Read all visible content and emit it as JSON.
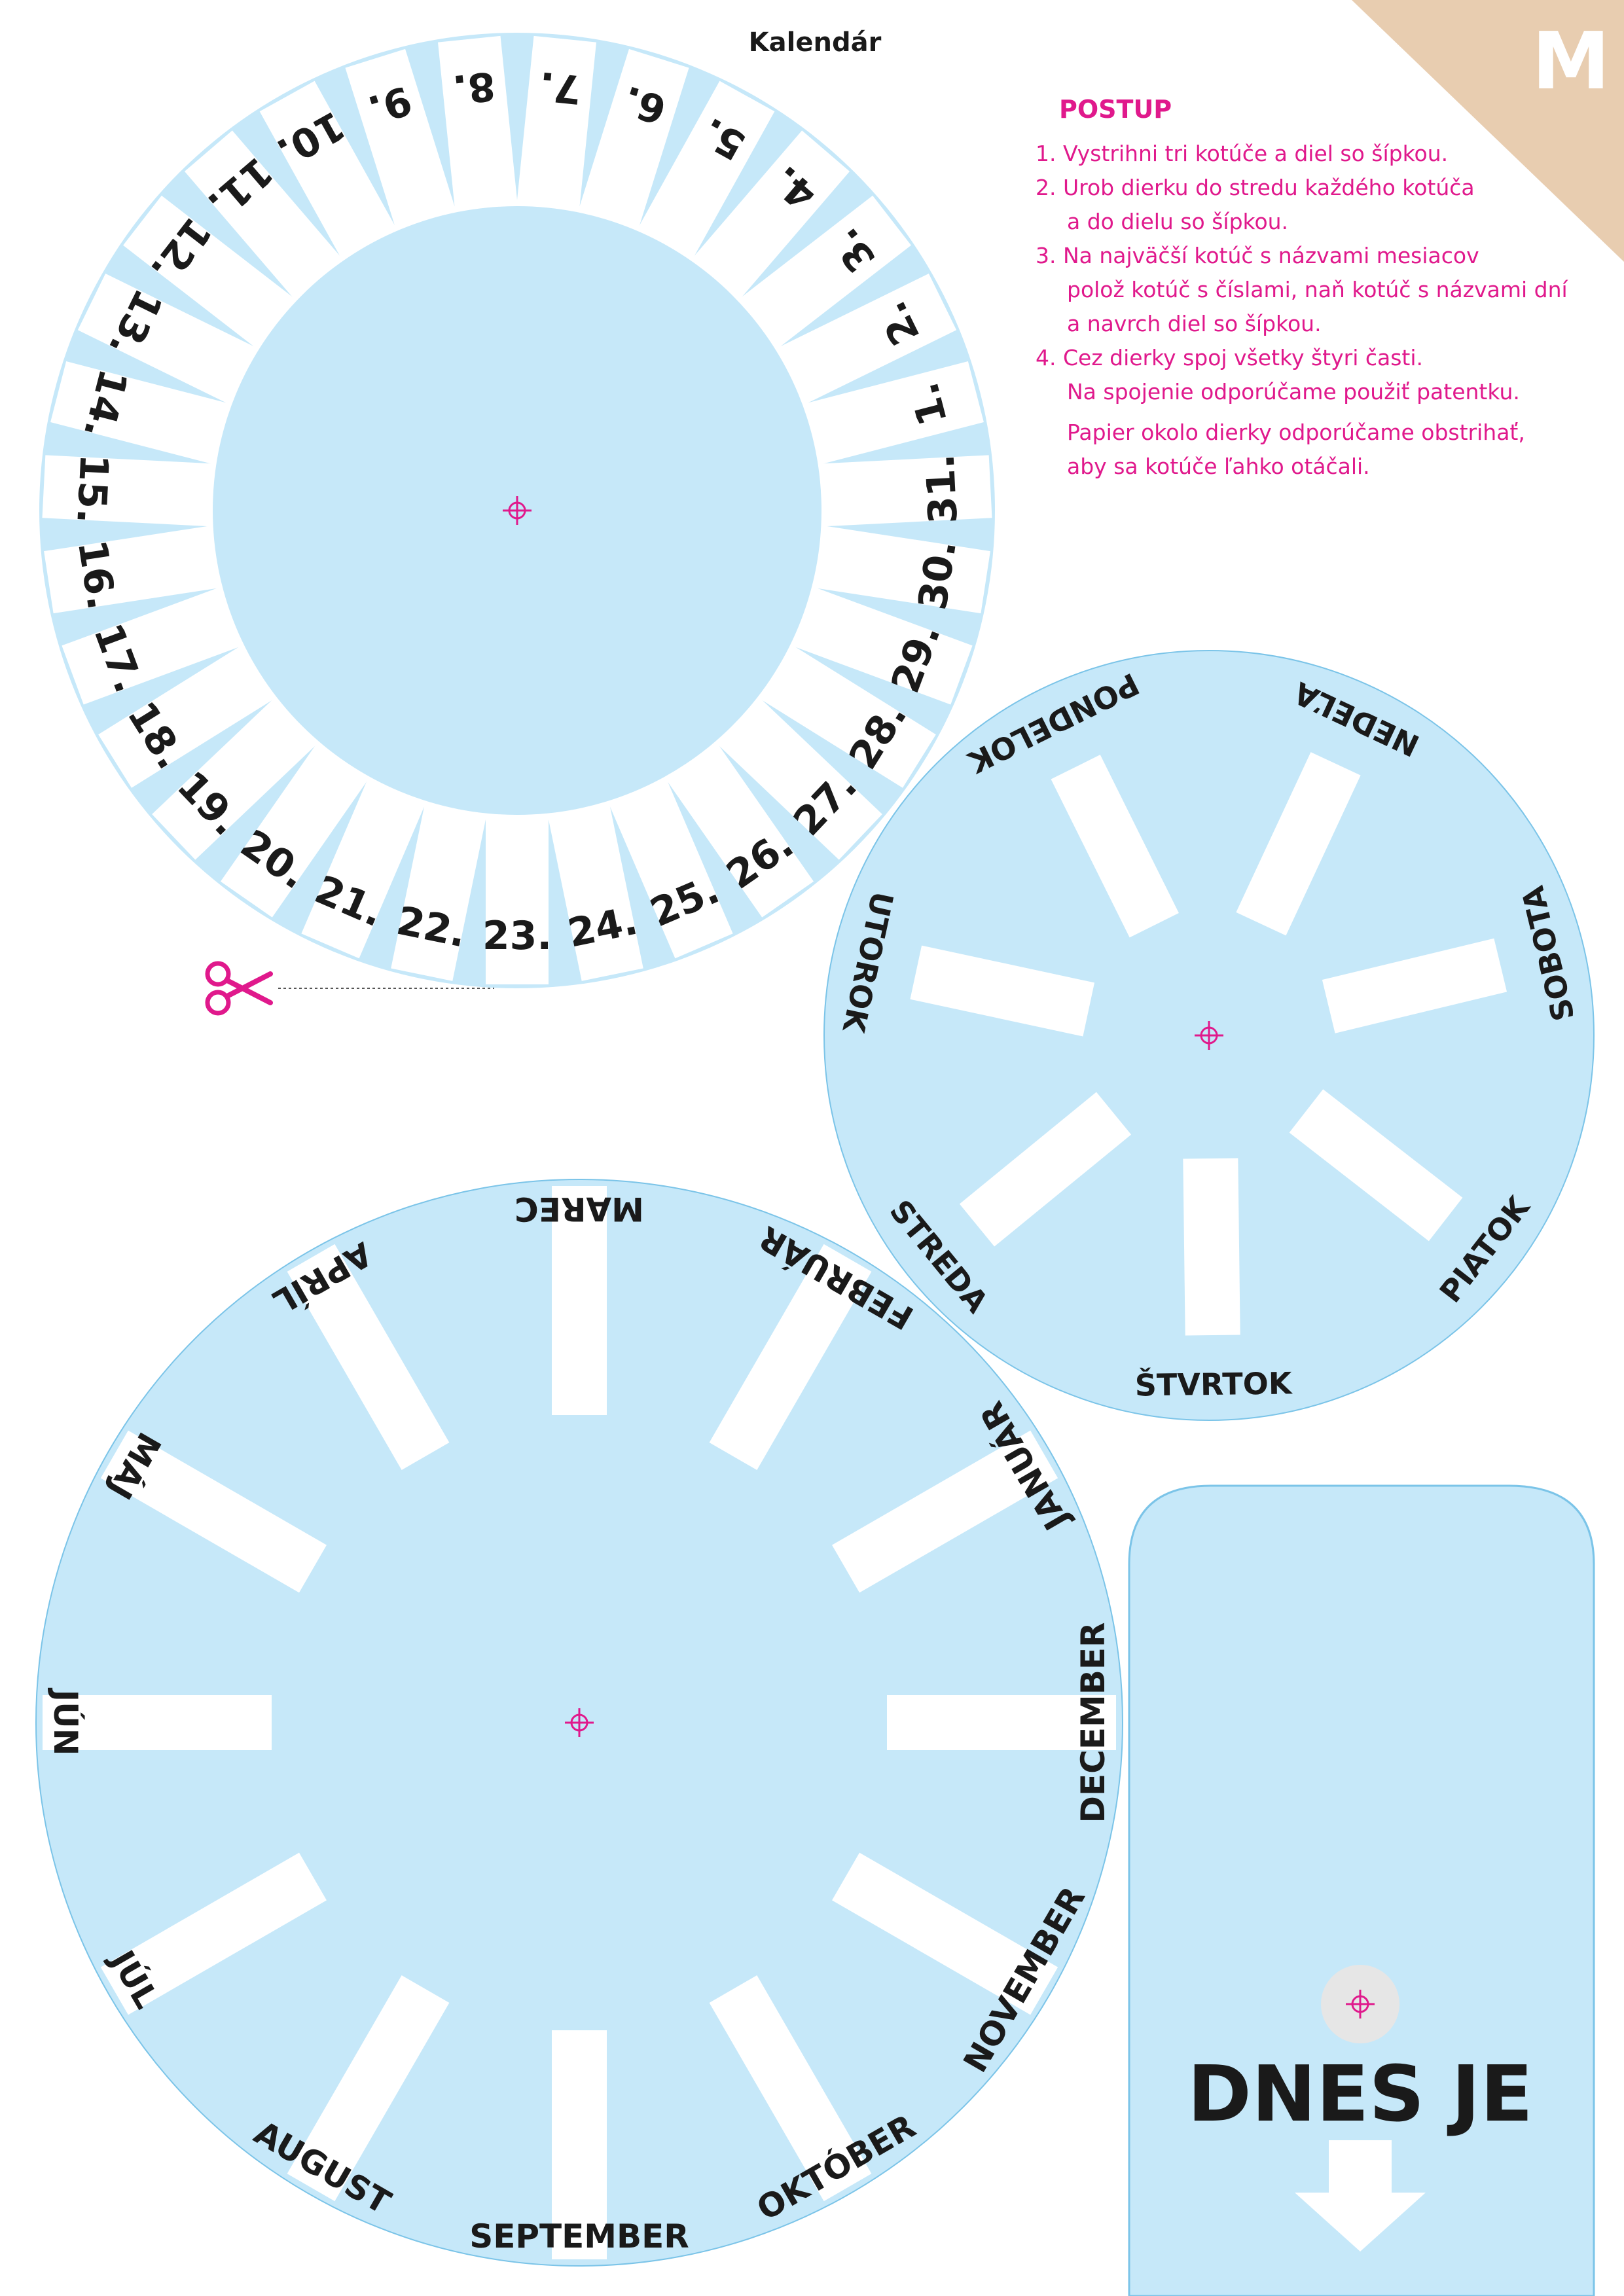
{
  "page_title": "Kalendár",
  "corner_letter": "M",
  "instructions": {
    "heading": "POSTUP",
    "lines": [
      "1. Vystrihni tri kotúče a diel so šípkou.",
      "2. Urob dierku do stredu každého kotúča",
      "a do dielu so šípkou.",
      "3. Na najväčší kotúč s názvami mesiacov",
      "polož kotúč s číslami, naň kotúč s názvami dní",
      "a navrch diel so šípkou.",
      "4. Cez dierky spoj všetky štyri časti.",
      "Na spojenie odporúčame použiť patentku.",
      "Papier okolo dierky odporúčame obstrihať,",
      "aby sa kotúče ľahko otáčali."
    ]
  },
  "day_numbers": [
    "1.",
    "2.",
    "3.",
    "4.",
    "5.",
    "6.",
    "7.",
    "8.",
    "9.",
    "10.",
    "11.",
    "12.",
    "13.",
    "14.",
    "15.",
    "16.",
    "17.",
    "18.",
    "19.",
    "20.",
    "21.",
    "22.",
    "23.",
    "24.",
    "25.",
    "26.",
    "27.",
    "28.",
    "29.",
    "30.",
    "31."
  ],
  "weekdays": [
    {
      "label": "NEDEĽA",
      "color": "#e3262b"
    },
    {
      "label": "SOBOTA",
      "color": "#e3262b"
    },
    {
      "label": "PIATOK",
      "color": "#1a1a1a"
    },
    {
      "label": "ŠTVRTOK",
      "color": "#1a1a1a"
    },
    {
      "label": "STREDA",
      "color": "#1a1a1a"
    },
    {
      "label": "UTOROK",
      "color": "#1a1a1a"
    },
    {
      "label": "PONDELOK",
      "color": "#1a1a1a"
    }
  ],
  "months": [
    "MAREC",
    "FEBRUÁR",
    "JANUÁR",
    "DECEMBER",
    "NOVEMBER",
    "OKTÓBER",
    "SEPTEMBER",
    "AUGUST",
    "JÚL",
    "JÚN",
    "MÁJ",
    "APRÍL"
  ],
  "pointer_label": "DNES JE",
  "colors": {
    "disc_fill": "#c6e8f9",
    "accent_magenta": "#e0198c",
    "weekend_red": "#e3262b",
    "corner_tan": "#e8cdb0",
    "text_dark": "#1a1a1a"
  }
}
